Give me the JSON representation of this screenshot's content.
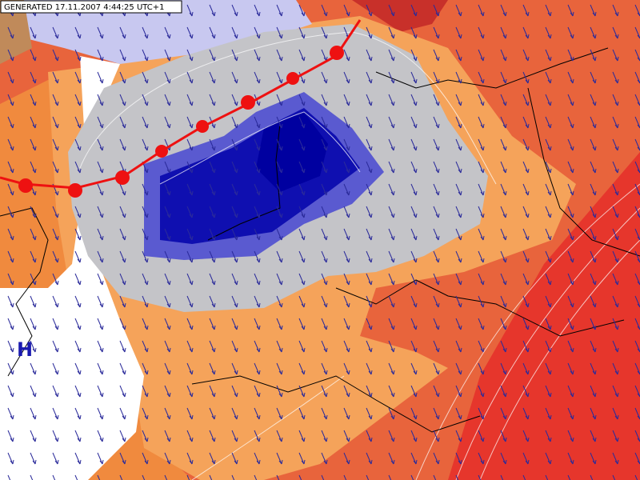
{
  "header": {
    "generated": "GENERATED 17.11.2007 4:44:25 UTC+1"
  },
  "labels": {
    "high_pressure": "H"
  }
}
